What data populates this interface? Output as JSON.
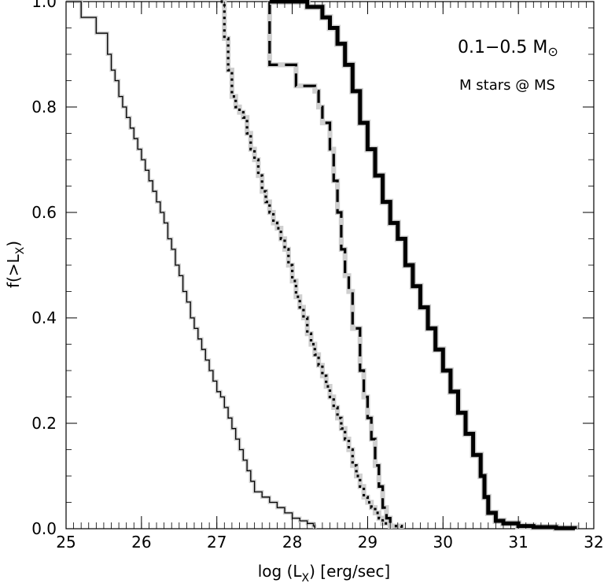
{
  "chart_data": {
    "type": "line",
    "title": "",
    "xlabel": "log (L",
    "xlabel_sub": "X",
    "xlabel_unit": ") [erg/sec]",
    "ylabel": "f(>L",
    "ylabel_sub": "X",
    "ylabel_end": ")",
    "xlim": [
      25,
      32
    ],
    "ylim": [
      0,
      1
    ],
    "xticks": [
      "25",
      "26",
      "27",
      "28",
      "29",
      "30",
      "31",
      "32"
    ],
    "yticks": [
      "0.0",
      "0.2",
      "0.4",
      "0.6",
      "0.8",
      "1.0"
    ],
    "annotations": {
      "mass_range": "0.1−0.5 M",
      "mass_symbol": "⊙",
      "sample": "M stars @ MS"
    },
    "legend": "none",
    "grid": false,
    "series": [
      {
        "style": "thin-solid",
        "x": [
          25.0,
          25.2,
          25.2,
          25.4,
          25.4,
          25.55,
          25.55,
          25.6,
          25.65,
          25.7,
          25.75,
          25.8,
          25.85,
          25.9,
          25.95,
          26.0,
          26.05,
          26.1,
          26.15,
          26.2,
          26.25,
          26.3,
          26.35,
          26.4,
          26.45,
          26.5,
          26.55,
          26.6,
          26.65,
          26.7,
          26.75,
          26.8,
          26.85,
          26.9,
          26.95,
          27.0,
          27.05,
          27.1,
          27.15,
          27.2,
          27.25,
          27.3,
          27.35,
          27.4,
          27.45,
          27.5,
          27.6,
          27.7,
          27.8,
          27.9,
          28.0,
          28.1,
          28.2,
          28.28,
          28.3
        ],
        "y": [
          1.0,
          1.0,
          0.97,
          0.97,
          0.94,
          0.94,
          0.9,
          0.87,
          0.85,
          0.82,
          0.8,
          0.78,
          0.76,
          0.74,
          0.72,
          0.7,
          0.68,
          0.66,
          0.64,
          0.62,
          0.6,
          0.58,
          0.55,
          0.53,
          0.5,
          0.48,
          0.45,
          0.43,
          0.4,
          0.38,
          0.36,
          0.34,
          0.32,
          0.3,
          0.28,
          0.26,
          0.25,
          0.23,
          0.21,
          0.19,
          0.17,
          0.15,
          0.13,
          0.11,
          0.09,
          0.07,
          0.06,
          0.05,
          0.04,
          0.03,
          0.02,
          0.015,
          0.01,
          0.005,
          0.0
        ]
      },
      {
        "style": "dotted",
        "x": [
          27.05,
          27.1,
          27.15,
          27.2,
          27.25,
          27.3,
          27.35,
          27.4,
          27.45,
          27.5,
          27.55,
          27.6,
          27.65,
          27.7,
          27.75,
          27.8,
          27.85,
          27.9,
          27.95,
          28.0,
          28.05,
          28.1,
          28.15,
          28.2,
          28.25,
          28.3,
          28.35,
          28.4,
          28.45,
          28.5,
          28.55,
          28.6,
          28.65,
          28.7,
          28.75,
          28.8,
          28.85,
          28.9,
          28.95,
          29.0,
          29.05,
          29.1,
          29.15,
          29.2,
          29.3,
          29.45
        ],
        "y": [
          1.0,
          0.93,
          0.87,
          0.82,
          0.8,
          0.79,
          0.78,
          0.75,
          0.72,
          0.7,
          0.67,
          0.64,
          0.62,
          0.6,
          0.58,
          0.57,
          0.55,
          0.53,
          0.5,
          0.47,
          0.44,
          0.42,
          0.4,
          0.37,
          0.35,
          0.33,
          0.31,
          0.29,
          0.27,
          0.25,
          0.23,
          0.21,
          0.19,
          0.17,
          0.15,
          0.12,
          0.1,
          0.08,
          0.06,
          0.05,
          0.04,
          0.03,
          0.02,
          0.01,
          0.005,
          0.0
        ]
      },
      {
        "style": "dashed",
        "x": [
          27.7,
          27.7,
          28.0,
          28.05,
          28.3,
          28.35,
          28.4,
          28.5,
          28.55,
          28.6,
          28.65,
          28.7,
          28.75,
          28.8,
          28.9,
          28.95,
          29.0,
          29.05,
          29.1,
          29.15,
          29.2,
          29.25,
          29.3
        ],
        "y": [
          1.0,
          0.88,
          0.88,
          0.84,
          0.83,
          0.8,
          0.77,
          0.72,
          0.66,
          0.6,
          0.53,
          0.48,
          0.45,
          0.38,
          0.3,
          0.25,
          0.21,
          0.17,
          0.12,
          0.08,
          0.04,
          0.02,
          0.0
        ]
      },
      {
        "style": "thick-solid",
        "x": [
          27.7,
          28.0,
          28.2,
          28.4,
          28.5,
          28.6,
          28.7,
          28.8,
          28.9,
          29.0,
          29.1,
          29.2,
          29.3,
          29.4,
          29.5,
          29.6,
          29.7,
          29.8,
          29.9,
          30.0,
          30.1,
          30.2,
          30.3,
          30.4,
          30.5,
          30.55,
          30.6,
          30.7,
          30.8,
          31.0,
          31.2,
          31.5,
          31.75
        ],
        "y": [
          1.0,
          1.0,
          0.99,
          0.97,
          0.95,
          0.92,
          0.88,
          0.83,
          0.77,
          0.72,
          0.67,
          0.62,
          0.58,
          0.55,
          0.5,
          0.46,
          0.42,
          0.38,
          0.34,
          0.3,
          0.26,
          0.22,
          0.18,
          0.14,
          0.1,
          0.06,
          0.03,
          0.015,
          0.01,
          0.005,
          0.003,
          0.001,
          0.0
        ]
      }
    ]
  }
}
